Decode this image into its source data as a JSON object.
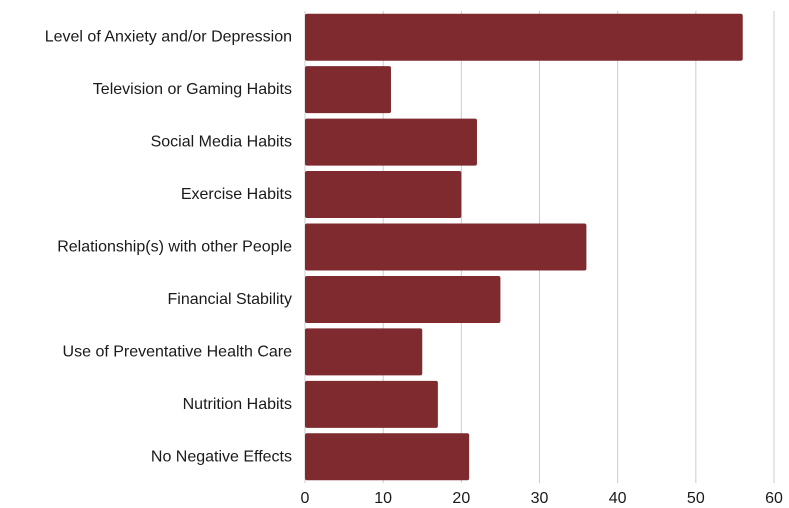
{
  "colors": {
    "bar": "#7f2a2f",
    "grid": "#cccccc",
    "text": "#1a1a1a",
    "background": "#ffffff"
  },
  "chart_data": {
    "type": "bar",
    "orientation": "horizontal",
    "categories": [
      "Level of Anxiety and/or Depression",
      "Television or Gaming Habits",
      "Social Media Habits",
      "Exercise Habits",
      "Relationship(s) with other People",
      "Financial Stability",
      "Use of Preventative Health Care",
      "Nutrition Habits",
      "No Negative Effects"
    ],
    "values": [
      56,
      11,
      22,
      20,
      36,
      25,
      15,
      17,
      21
    ],
    "xlim": [
      0,
      60
    ],
    "xticks": [
      "0",
      "10",
      "20",
      "30",
      "40",
      "50",
      "60"
    ],
    "grid": "vertical",
    "legend": "none"
  }
}
